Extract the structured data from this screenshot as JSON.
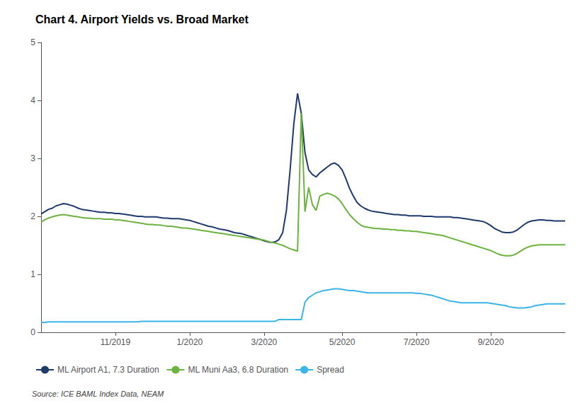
{
  "chart_data": {
    "type": "line",
    "title": "Chart 4. Airport Yields vs. Broad Market",
    "annotations": [
      "Source: ICE BAML Index Data, NEAM"
    ],
    "categories": [
      null,
      null,
      null,
      null,
      null,
      null,
      null,
      null,
      null,
      null,
      null,
      null,
      null,
      null,
      null,
      null,
      null,
      null,
      null,
      null,
      "11/2019",
      null,
      null,
      null,
      null,
      null,
      null,
      null,
      null,
      null,
      null,
      null,
      null,
      null,
      null,
      null,
      null,
      null,
      null,
      null,
      "1/2020",
      null,
      null,
      null,
      null,
      null,
      null,
      null,
      null,
      null,
      null,
      null,
      null,
      null,
      null,
      null,
      null,
      null,
      null,
      null,
      "3/2020",
      null,
      null,
      null,
      null,
      null,
      null,
      null,
      null,
      null,
      null,
      null,
      null,
      null,
      null,
      null,
      null,
      null,
      null,
      null,
      null,
      "5/2020",
      null,
      null,
      null,
      null,
      null,
      null,
      null,
      null,
      null,
      null,
      null,
      null,
      null,
      null,
      null,
      null,
      null,
      null,
      null,
      "7/2020",
      null,
      null,
      null,
      null,
      null,
      null,
      null,
      null,
      null,
      null,
      null,
      null,
      null,
      null,
      null,
      null,
      null,
      null,
      null,
      "9/2020",
      null,
      null,
      null,
      null,
      null,
      null,
      null,
      null,
      null,
      null,
      null,
      null,
      null,
      null,
      null,
      null,
      null,
      null,
      null,
      null
    ],
    "ylim": [
      0,
      5
    ],
    "yticks": [
      0,
      1,
      2,
      3,
      4,
      5
    ],
    "grid": false,
    "legend": "bottom",
    "series": [
      {
        "name": "ML Airport A1, 7.3 Duration",
        "color": "#1f3a6e",
        "values": [
          2.04,
          2.08,
          2.12,
          2.14,
          2.18,
          2.2,
          2.22,
          2.21,
          2.19,
          2.17,
          2.14,
          2.12,
          2.11,
          2.1,
          2.09,
          2.08,
          2.07,
          2.07,
          2.06,
          2.06,
          2.05,
          2.05,
          2.04,
          2.03,
          2.02,
          2.01,
          2.0,
          2.0,
          1.99,
          1.99,
          1.99,
          1.99,
          1.98,
          1.97,
          1.97,
          1.96,
          1.96,
          1.96,
          1.95,
          1.94,
          1.93,
          1.91,
          1.89,
          1.87,
          1.85,
          1.83,
          1.82,
          1.8,
          1.78,
          1.77,
          1.76,
          1.74,
          1.72,
          1.71,
          1.7,
          1.68,
          1.66,
          1.64,
          1.62,
          1.6,
          1.58,
          1.56,
          1.55,
          1.56,
          1.6,
          1.72,
          2.1,
          2.8,
          3.6,
          4.12,
          3.78,
          3.1,
          2.8,
          2.72,
          2.68,
          2.75,
          2.8,
          2.85,
          2.9,
          2.92,
          2.88,
          2.8,
          2.65,
          2.48,
          2.35,
          2.24,
          2.18,
          2.14,
          2.11,
          2.09,
          2.08,
          2.07,
          2.06,
          2.05,
          2.04,
          2.03,
          2.03,
          2.02,
          2.02,
          2.01,
          2.01,
          2.01,
          2.01,
          2.0,
          2.0,
          2.0,
          1.99,
          1.99,
          1.99,
          1.99,
          1.99,
          1.98,
          1.98,
          1.97,
          1.96,
          1.95,
          1.94,
          1.93,
          1.92,
          1.91,
          1.88,
          1.84,
          1.79,
          1.76,
          1.73,
          1.72,
          1.72,
          1.73,
          1.76,
          1.81,
          1.86,
          1.9,
          1.92,
          1.93,
          1.94,
          1.94,
          1.93,
          1.93,
          1.92,
          1.92,
          1.92,
          1.92
        ]
      },
      {
        "name": "ML Muni Aa3, 6.8 Duration",
        "color": "#6db33f",
        "values": [
          1.9,
          1.94,
          1.97,
          1.99,
          2.01,
          2.02,
          2.03,
          2.02,
          2.01,
          2.0,
          1.99,
          1.98,
          1.97,
          1.97,
          1.96,
          1.96,
          1.96,
          1.95,
          1.95,
          1.95,
          1.94,
          1.94,
          1.93,
          1.92,
          1.91,
          1.9,
          1.89,
          1.88,
          1.87,
          1.86,
          1.86,
          1.85,
          1.85,
          1.84,
          1.83,
          1.83,
          1.82,
          1.81,
          1.8,
          1.8,
          1.79,
          1.78,
          1.77,
          1.76,
          1.75,
          1.74,
          1.73,
          1.72,
          1.71,
          1.7,
          1.69,
          1.68,
          1.67,
          1.66,
          1.65,
          1.64,
          1.63,
          1.62,
          1.61,
          1.6,
          1.59,
          1.57,
          1.55,
          1.54,
          1.52,
          1.5,
          1.47,
          1.44,
          1.42,
          1.4,
          3.78,
          2.08,
          2.5,
          2.2,
          2.1,
          2.35,
          2.38,
          2.4,
          2.38,
          2.35,
          2.3,
          2.22,
          2.12,
          2.03,
          1.96,
          1.9,
          1.85,
          1.82,
          1.81,
          1.8,
          1.79,
          1.79,
          1.78,
          1.78,
          1.77,
          1.77,
          1.76,
          1.76,
          1.75,
          1.75,
          1.74,
          1.74,
          1.73,
          1.72,
          1.71,
          1.7,
          1.69,
          1.68,
          1.67,
          1.65,
          1.63,
          1.61,
          1.59,
          1.57,
          1.55,
          1.53,
          1.51,
          1.49,
          1.47,
          1.45,
          1.43,
          1.41,
          1.38,
          1.35,
          1.33,
          1.32,
          1.32,
          1.33,
          1.36,
          1.4,
          1.44,
          1.47,
          1.49,
          1.5,
          1.51,
          1.51,
          1.51,
          1.51,
          1.51,
          1.51,
          1.51,
          1.51
        ]
      },
      {
        "name": "Spread",
        "color": "#3bb5e8",
        "values": [
          0.17,
          0.17,
          0.18,
          0.18,
          0.18,
          0.18,
          0.18,
          0.18,
          0.18,
          0.18,
          0.18,
          0.18,
          0.18,
          0.18,
          0.18,
          0.18,
          0.18,
          0.18,
          0.18,
          0.18,
          0.18,
          0.18,
          0.18,
          0.18,
          0.18,
          0.18,
          0.18,
          0.19,
          0.19,
          0.19,
          0.19,
          0.19,
          0.19,
          0.19,
          0.19,
          0.19,
          0.19,
          0.19,
          0.19,
          0.19,
          0.19,
          0.19,
          0.19,
          0.19,
          0.19,
          0.19,
          0.19,
          0.19,
          0.19,
          0.19,
          0.19,
          0.19,
          0.19,
          0.19,
          0.19,
          0.19,
          0.19,
          0.19,
          0.19,
          0.19,
          0.19,
          0.19,
          0.19,
          0.19,
          0.22,
          0.22,
          0.22,
          0.22,
          0.22,
          0.22,
          0.22,
          0.52,
          0.6,
          0.64,
          0.68,
          0.7,
          0.72,
          0.73,
          0.74,
          0.75,
          0.75,
          0.74,
          0.73,
          0.72,
          0.72,
          0.71,
          0.7,
          0.69,
          0.68,
          0.68,
          0.68,
          0.68,
          0.68,
          0.68,
          0.68,
          0.68,
          0.68,
          0.68,
          0.68,
          0.68,
          0.68,
          0.67,
          0.67,
          0.66,
          0.65,
          0.64,
          0.62,
          0.6,
          0.58,
          0.56,
          0.54,
          0.53,
          0.52,
          0.51,
          0.51,
          0.51,
          0.51,
          0.51,
          0.51,
          0.51,
          0.51,
          0.5,
          0.49,
          0.48,
          0.47,
          0.46,
          0.44,
          0.43,
          0.42,
          0.42,
          0.42,
          0.43,
          0.44,
          0.46,
          0.47,
          0.48,
          0.49,
          0.49,
          0.49,
          0.49,
          0.49,
          0.49
        ]
      }
    ]
  }
}
